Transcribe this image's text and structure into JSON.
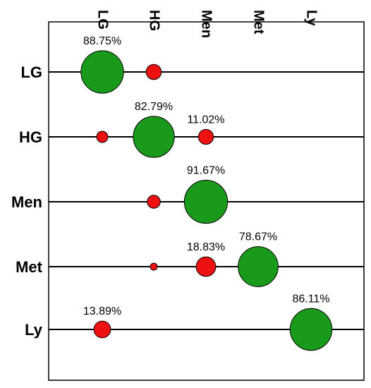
{
  "chart_data": {
    "type": "bubble-matrix",
    "title": "",
    "rows": [
      "LG",
      "HG",
      "Men",
      "Met",
      "Ly"
    ],
    "columns": [
      "LG",
      "HG",
      "Men",
      "Met",
      "Ly"
    ],
    "colors": {
      "diagonal": "#1a9a1a",
      "off_diagonal": "#ee1111",
      "outline": "#000000"
    },
    "cells": [
      {
        "row": "LG",
        "col": "LG",
        "value": 88.75,
        "label": "88.75%"
      },
      {
        "row": "LG",
        "col": "HG",
        "value": 11.25,
        "label": ""
      },
      {
        "row": "HG",
        "col": "LG",
        "value": 6.2,
        "label": ""
      },
      {
        "row": "HG",
        "col": "HG",
        "value": 82.79,
        "label": "82.79%"
      },
      {
        "row": "HG",
        "col": "Men",
        "value": 11.02,
        "label": "11.02%"
      },
      {
        "row": "Men",
        "col": "HG",
        "value": 8.33,
        "label": ""
      },
      {
        "row": "Men",
        "col": "Men",
        "value": 91.67,
        "label": "91.67%"
      },
      {
        "row": "Met",
        "col": "HG",
        "value": 2.5,
        "label": ""
      },
      {
        "row": "Met",
        "col": "Men",
        "value": 18.83,
        "label": "18.83%"
      },
      {
        "row": "Met",
        "col": "Met",
        "value": 78.67,
        "label": "78.67%"
      },
      {
        "row": "Ly",
        "col": "LG",
        "value": 13.89,
        "label": "13.89%"
      },
      {
        "row": "Ly",
        "col": "Ly",
        "value": 86.11,
        "label": "86.11%"
      }
    ]
  }
}
